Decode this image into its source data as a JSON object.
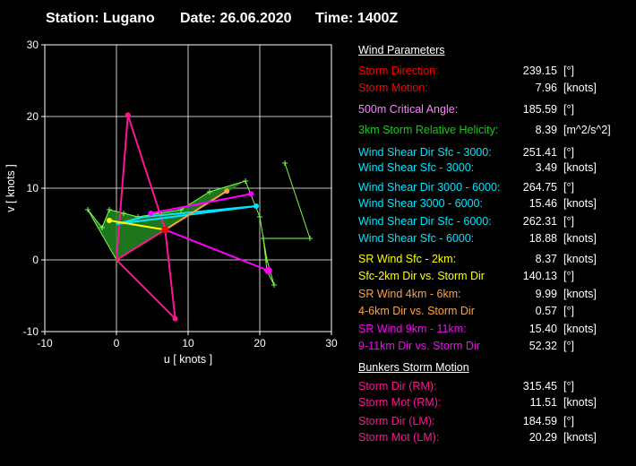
{
  "header": {
    "station": "Station: Lugano",
    "date": "Date: 26.06.2020",
    "time": "Time: 1400Z"
  },
  "panel": {
    "wind_params_title": "Wind Parameters",
    "bunkers_title": "Bunkers Storm Motion",
    "rows": [
      {
        "label": "Storm Direction:",
        "value": "239.15",
        "unit": "[°]",
        "color": "#ff0000"
      },
      {
        "label": "Storm Motion:",
        "value": "7.96",
        "unit": "[knots]",
        "color": "#ff0000"
      },
      {
        "label": "500m Critical Angle:",
        "value": "185.59",
        "unit": "[°]",
        "color": "#ff80ff"
      },
      {
        "label": "3km Storm Relative Helicity:",
        "value": "8.39",
        "unit": "[m^2/s^2]",
        "color": "#22c022"
      },
      {
        "label": "Wind Shear Dir Sfc - 3000:",
        "value": "251.41",
        "unit": "[°]",
        "color": "#00e5ff"
      },
      {
        "label": "Wind Shear Sfc - 3000:",
        "value": "3.49",
        "unit": "[knots]",
        "color": "#00e5ff"
      },
      {
        "label": "Wind Shear Dir 3000 - 6000:",
        "value": "264.75",
        "unit": "[°]",
        "color": "#00e5ff"
      },
      {
        "label": "Wind Shear 3000 - 6000:",
        "value": "15.46",
        "unit": "[knots]",
        "color": "#00e5ff"
      },
      {
        "label": "Wind Shear Dir Sfc - 6000:",
        "value": "262.31",
        "unit": "[°]",
        "color": "#00e5ff"
      },
      {
        "label": "Wind Shear Sfc - 6000:",
        "value": "18.88",
        "unit": "[knots]",
        "color": "#00e5ff"
      },
      {
        "label": "SR Wind Sfc - 2km:",
        "value": "8.37",
        "unit": "[knots]",
        "color": "#ffff00"
      },
      {
        "label": "Sfc-2km Dir vs. Storm Dir",
        "value": "140.13",
        "unit": "[°]",
        "color": "#ffff00"
      },
      {
        "label": "SR Wind 4km - 6km:",
        "value": "9.99",
        "unit": "[knots]",
        "color": "#ffa040"
      },
      {
        "label": "4-6km Dir vs. Storm Dir",
        "value": "0.57",
        "unit": "[°]",
        "color": "#ffa040"
      },
      {
        "label": "SR Wind 9km - 11km:",
        "value": "15.40",
        "unit": "[knots]",
        "color": "#ff00ff"
      },
      {
        "label": "9-11km Dir vs. Storm Dir",
        "value": "52.32",
        "unit": "[°]",
        "color": "#ff00ff"
      }
    ],
    "bunkers_rows": [
      {
        "label": "Storm Dir (RM):",
        "value": "315.45",
        "unit": "[°]",
        "color": "#ff1493"
      },
      {
        "label": "Storm Mot (RM):",
        "value": "11.51",
        "unit": "[knots]",
        "color": "#ff1493"
      },
      {
        "label": "Storm Dir (LM):",
        "value": "184.59",
        "unit": "[°]",
        "color": "#ff1493"
      },
      {
        "label": "Storm Mot (LM):",
        "value": "20.29",
        "unit": "[knots]",
        "color": "#ff1493"
      }
    ]
  },
  "chart_data": {
    "type": "scatter",
    "title": "",
    "xlabel": "u  [ knots ]",
    "ylabel": "v  [ knots ]",
    "xlim": [
      -10,
      30
    ],
    "ylim": [
      -10,
      30
    ],
    "xticks": [
      -10,
      0,
      10,
      20,
      30
    ],
    "yticks": [
      -10,
      0,
      10,
      20,
      30
    ],
    "grid": true,
    "hodograph_points": [
      [
        0,
        0
      ],
      [
        -4,
        7
      ],
      [
        -2,
        4.5
      ],
      [
        -1,
        7
      ],
      [
        1,
        6.5
      ],
      [
        3,
        6
      ],
      [
        6,
        6.5
      ],
      [
        9,
        7
      ],
      [
        13,
        9.5
      ],
      [
        18,
        11
      ],
      [
        20,
        6
      ],
      [
        21,
        0
      ],
      [
        22,
        -3.5
      ],
      [
        21,
        -1.5
      ],
      [
        20.5,
        3
      ],
      [
        27,
        3
      ],
      [
        23.5,
        13.5
      ]
    ],
    "polygons": [
      {
        "name": "sr-helicity-area",
        "color": "#228b22",
        "points": [
          [
            0,
            0
          ],
          [
            -4,
            7
          ],
          [
            -2,
            4.5
          ],
          [
            -1,
            7
          ],
          [
            1,
            6.5
          ],
          [
            3,
            6
          ],
          [
            6,
            6.5
          ],
          [
            9,
            7
          ],
          [
            13,
            9.5
          ],
          [
            18,
            11
          ],
          [
            6.8,
            4.2
          ]
        ]
      }
    ],
    "segments": [
      {
        "name": "storm-motion",
        "color": "#ff1493",
        "from": [
          0,
          0
        ],
        "to": [
          6.8,
          4.2
        ]
      },
      {
        "name": "bunkers-rm",
        "color": "#ff1493",
        "from": [
          0,
          0
        ],
        "to": [
          8.2,
          -8.2
        ]
      },
      {
        "name": "bunkers-lm",
        "color": "#ff1493",
        "from": [
          0,
          0
        ],
        "to": [
          1.6,
          20.2
        ]
      },
      {
        "name": "rm-to-mean",
        "color": "#ff1493",
        "from": [
          8.2,
          -8.2
        ],
        "to": [
          6.8,
          4.2
        ]
      },
      {
        "name": "lm-to-mean",
        "color": "#ff1493",
        "from": [
          1.6,
          20.2
        ],
        "to": [
          6.8,
          4.2
        ]
      },
      {
        "name": "shear-sfc-3000",
        "color": "#00e5ff",
        "from": [
          0,
          5
        ],
        "to": [
          3.8,
          6
        ]
      },
      {
        "name": "shear-3000-6000",
        "color": "#00e5ff",
        "from": [
          3.8,
          6
        ],
        "to": [
          19.5,
          7.5
        ]
      },
      {
        "name": "shear-sfc-6000",
        "color": "#00e5ff",
        "from": [
          0,
          5
        ],
        "to": [
          19.5,
          7.5
        ]
      },
      {
        "name": "sr-sfc-2km",
        "color": "#ffff00",
        "from": [
          6.8,
          4.2
        ],
        "to": [
          -1,
          5.5
        ]
      },
      {
        "name": "sr-4-6km",
        "color": "#ffa040",
        "from": [
          6.8,
          4.2
        ],
        "to": [
          15.4,
          9.6
        ]
      },
      {
        "name": "sr-9-11km",
        "color": "#ff00ff",
        "from": [
          6.8,
          4.2
        ],
        "to": [
          21.2,
          -1.5
        ]
      },
      {
        "name": "shear-3000-6000-b",
        "color": "#ff00ff",
        "from": [
          4.8,
          6.5
        ],
        "to": [
          18.8,
          9.2
        ]
      }
    ],
    "points": [
      {
        "name": "storm-point",
        "color": "#ff0000",
        "xy": [
          6.8,
          4.2
        ],
        "r": 4
      },
      {
        "name": "rm-point",
        "color": "#ff1493",
        "xy": [
          8.2,
          -8.2
        ],
        "r": 3
      },
      {
        "name": "lm-point",
        "color": "#ff1493",
        "xy": [
          1.6,
          20.2
        ],
        "r": 3
      },
      {
        "name": "sfc-2km-point",
        "color": "#ffff00",
        "xy": [
          -1,
          5.5
        ],
        "r": 3
      },
      {
        "name": "layer-4-6km-point",
        "color": "#ffa040",
        "xy": [
          15.4,
          9.6
        ],
        "r": 3
      },
      {
        "name": "layer-9-11km-point",
        "color": "#ff00ff",
        "xy": [
          21.2,
          -1.5
        ],
        "r": 4
      },
      {
        "name": "shear-6000-point",
        "color": "#00e5ff",
        "xy": [
          19.5,
          7.5
        ],
        "r": 3
      },
      {
        "name": "magenta-point",
        "color": "#ff00ff",
        "xy": [
          4.8,
          6.5
        ],
        "r": 3
      },
      {
        "name": "magenta-point-2",
        "color": "#ff00ff",
        "xy": [
          18.8,
          9.2
        ],
        "r": 3
      }
    ]
  }
}
